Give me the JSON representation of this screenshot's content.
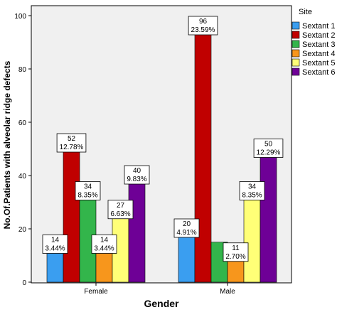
{
  "chart_data": {
    "type": "bar",
    "xlabel": "Gender",
    "ylabel": "No.Of.Patients with alveolar ridge defects",
    "categories": [
      "Female",
      "Male"
    ],
    "ylim": [
      0,
      100
    ],
    "yticks": [
      0,
      20,
      40,
      60,
      80,
      100
    ],
    "grid": false,
    "legend_title": "Site",
    "legend_position": "right",
    "series": [
      {
        "name": "Sextant 1",
        "color": "#3a9ef0",
        "values": [
          14,
          20
        ],
        "labels": [
          "14\n3.44%",
          "20\n4.91%"
        ]
      },
      {
        "name": "Sextant 2",
        "color": "#c00000",
        "values": [
          52,
          96
        ],
        "labels": [
          "52\n12.78%",
          "96\n23.59%"
        ]
      },
      {
        "name": "Sextant 3",
        "color": "#33b54b",
        "values": [
          34,
          15
        ],
        "labels": [
          "34\n8.35%",
          ""
        ]
      },
      {
        "name": "Sextant 4",
        "color": "#f7961c",
        "values": [
          14,
          11
        ],
        "labels": [
          "14\n3.44%",
          "11\n2.70%"
        ]
      },
      {
        "name": "Sextant 5",
        "color": "#ffff77",
        "values": [
          27,
          34
        ],
        "labels": [
          "27\n6.63%",
          "34\n8.35%"
        ]
      },
      {
        "name": "Sextant 6",
        "color": "#6e0096",
        "values": [
          40,
          50
        ],
        "labels": [
          "40\n9.83%",
          "50\n12.29%"
        ]
      }
    ]
  }
}
